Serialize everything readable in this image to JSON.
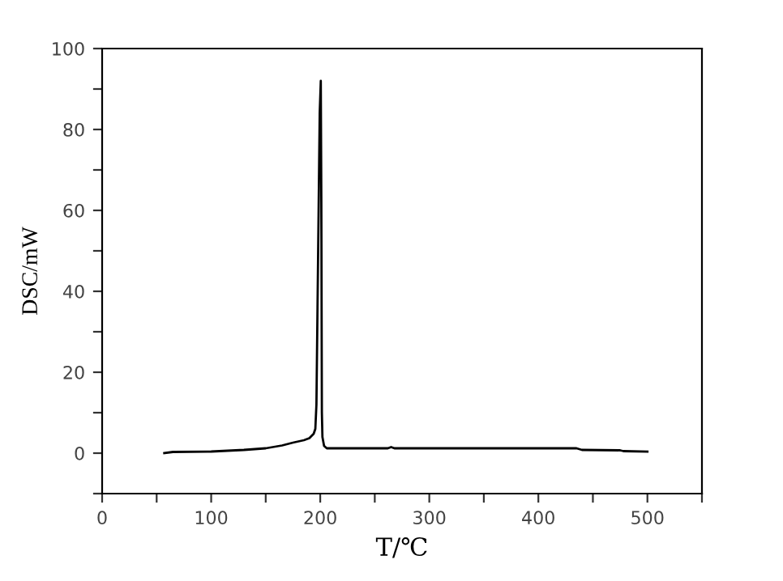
{
  "chart_data": {
    "type": "line",
    "xlabel": "T/℃",
    "ylabel": "DSC/mW",
    "x": [
      57,
      65,
      100,
      130,
      150,
      165,
      175,
      185,
      190,
      194,
      195.5,
      196.5,
      197.5,
      198.5,
      199.5,
      200.5,
      201,
      201.5,
      202,
      203.5,
      206,
      230,
      262,
      265,
      268,
      300,
      400,
      435,
      440,
      475,
      478,
      500
    ],
    "series": [
      {
        "color": "#000000",
        "values": [
          0,
          0.3,
          0.4,
          0.8,
          1.2,
          1.9,
          2.6,
          3.2,
          3.7,
          4.8,
          6,
          12,
          36,
          60,
          84,
          92,
          62,
          10,
          4,
          1.8,
          1.2,
          1.2,
          1.2,
          1.5,
          1.2,
          1.2,
          1.2,
          1.2,
          0.8,
          0.7,
          0.5,
          0.4
        ]
      }
    ],
    "xlim": [
      0,
      550
    ],
    "ylim": [
      -10,
      100
    ],
    "xticks": [
      0,
      {
        "value": 50,
        "label": null
      },
      100,
      {
        "value": 150,
        "label": null
      },
      200,
      {
        "value": 250,
        "label": null
      },
      300,
      {
        "value": 350,
        "label": null
      },
      400,
      {
        "value": 450,
        "label": null
      },
      500,
      {
        "value": 550,
        "label": null
      }
    ],
    "yticks": [
      {
        "value": -10,
        "label": null
      },
      0,
      {
        "value": 10,
        "label": null
      },
      20,
      {
        "value": 30,
        "label": null
      },
      40,
      {
        "value": 50,
        "label": null
      },
      60,
      {
        "value": 70,
        "label": null
      },
      80,
      {
        "value": 90,
        "label": null
      },
      100
    ],
    "grid": false,
    "legend": false,
    "marker": "none",
    "line_style": "solid"
  }
}
